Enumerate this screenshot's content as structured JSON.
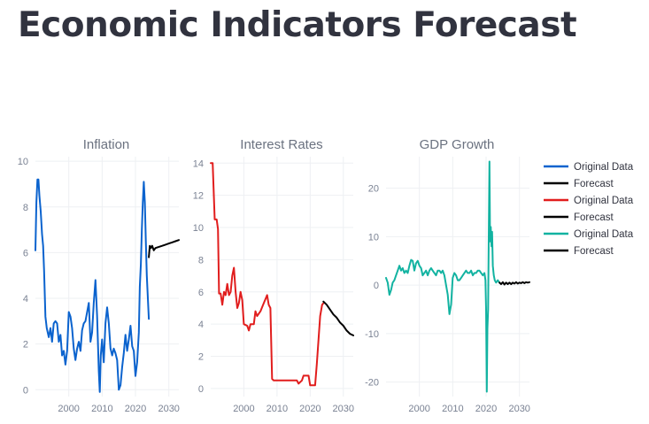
{
  "page": {
    "title": "Economic Indicators Forecast"
  },
  "colors": {
    "inflation": "#0b63ce",
    "interest": "#e11d1d",
    "gdp": "#12b3a1",
    "forecast": "#000000"
  },
  "chart_data": [
    {
      "type": "line",
      "title": "Inflation",
      "xlim": [
        1990,
        2033
      ],
      "ylim": [
        -0.3,
        10.2
      ],
      "xticks": [
        2000,
        2010,
        2020,
        2030
      ],
      "yticks": [
        0,
        2,
        4,
        6,
        8,
        10
      ],
      "series": [
        {
          "name": "Original Data",
          "color": "#0b63ce",
          "points": [
            [
              1990,
              6.1
            ],
            [
              1990.3,
              8.2
            ],
            [
              1990.6,
              9.2
            ],
            [
              1990.9,
              9.2
            ],
            [
              1991.2,
              8.5
            ],
            [
              1991.6,
              7.8
            ],
            [
              1992,
              6.8
            ],
            [
              1992.3,
              6.3
            ],
            [
              1992.6,
              5.2
            ],
            [
              1993,
              3.2
            ],
            [
              1993.4,
              2.7
            ],
            [
              1994,
              2.3
            ],
            [
              1994.5,
              2.7
            ],
            [
              1995,
              2.1
            ],
            [
              1995.5,
              2.9
            ],
            [
              1996,
              3.0
            ],
            [
              1996.5,
              2.9
            ],
            [
              1997,
              2.1
            ],
            [
              1997.5,
              2.4
            ],
            [
              1998,
              1.5
            ],
            [
              1998.5,
              1.7
            ],
            [
              1999,
              1.1
            ],
            [
              1999.5,
              1.7
            ],
            [
              2000,
              3.4
            ],
            [
              2000.5,
              3.2
            ],
            [
              2001,
              2.7
            ],
            [
              2001.5,
              1.8
            ],
            [
              2002,
              1.3
            ],
            [
              2002.5,
              1.8
            ],
            [
              2003,
              2.1
            ],
            [
              2003.5,
              1.7
            ],
            [
              2004,
              2.6
            ],
            [
              2004.5,
              2.9
            ],
            [
              2005,
              3.0
            ],
            [
              2005.5,
              3.4
            ],
            [
              2006,
              3.8
            ],
            [
              2006.5,
              2.1
            ],
            [
              2007,
              2.5
            ],
            [
              2007.5,
              3.8
            ],
            [
              2008,
              4.8
            ],
            [
              2008.5,
              3.2
            ],
            [
              2009,
              0.8
            ],
            [
              2009.3,
              -0.1
            ],
            [
              2009.6,
              1.5
            ],
            [
              2010,
              2.2
            ],
            [
              2010.5,
              1.2
            ],
            [
              2011,
              2.9
            ],
            [
              2011.5,
              3.6
            ],
            [
              2012,
              2.9
            ],
            [
              2012.5,
              1.8
            ],
            [
              2013,
              1.5
            ],
            [
              2013.5,
              1.8
            ],
            [
              2014,
              1.6
            ],
            [
              2014.5,
              1.3
            ],
            [
              2015,
              0.0
            ],
            [
              2015.5,
              0.2
            ],
            [
              2016,
              1.0
            ],
            [
              2016.5,
              1.6
            ],
            [
              2017,
              2.4
            ],
            [
              2017.5,
              1.7
            ],
            [
              2018,
              2.2
            ],
            [
              2018.5,
              2.8
            ],
            [
              2019,
              1.9
            ],
            [
              2019.5,
              1.7
            ],
            [
              2020,
              0.6
            ],
            [
              2020.5,
              1.2
            ],
            [
              2021,
              2.5
            ],
            [
              2021.3,
              4.5
            ],
            [
              2021.6,
              5.5
            ],
            [
              2021.9,
              7.0
            ],
            [
              2022.2,
              8.2
            ],
            [
              2022.5,
              9.1
            ],
            [
              2022.8,
              8.2
            ],
            [
              2023.1,
              6.5
            ],
            [
              2023.4,
              5.0
            ],
            [
              2023.7,
              4.0
            ],
            [
              2024,
              3.1
            ]
          ]
        },
        {
          "name": "Forecast",
          "color": "#000000",
          "points": [
            [
              2024,
              5.8
            ],
            [
              2024.3,
              6.3
            ],
            [
              2024.6,
              6.2
            ],
            [
              2025,
              6.3
            ],
            [
              2025.5,
              6.1
            ],
            [
              2026,
              6.2
            ],
            [
              2027,
              6.25
            ],
            [
              2028,
              6.3
            ],
            [
              2029,
              6.35
            ],
            [
              2030,
              6.4
            ],
            [
              2031,
              6.45
            ],
            [
              2032,
              6.5
            ],
            [
              2033,
              6.55
            ]
          ]
        }
      ]
    },
    {
      "type": "line",
      "title": "Interest Rates",
      "xlim": [
        1990,
        2033
      ],
      "ylim": [
        -0.5,
        14.4
      ],
      "xticks": [
        2000,
        2010,
        2020,
        2030
      ],
      "yticks": [
        0,
        2,
        4,
        6,
        8,
        10,
        12,
        14
      ],
      "series": [
        {
          "name": "Original Data",
          "color": "#e11d1d",
          "points": [
            [
              1990,
              14.0
            ],
            [
              1990.6,
              14.0
            ],
            [
              1991.2,
              10.5
            ],
            [
              1991.8,
              10.5
            ],
            [
              1992.2,
              9.9
            ],
            [
              1992.5,
              5.9
            ],
            [
              1993,
              5.9
            ],
            [
              1993.5,
              5.2
            ],
            [
              1994,
              6.0
            ],
            [
              1994.5,
              5.8
            ],
            [
              1995,
              6.5
            ],
            [
              1995.5,
              5.8
            ],
            [
              1996,
              6.0
            ],
            [
              1996.5,
              7.0
            ],
            [
              1997,
              7.5
            ],
            [
              1997.5,
              6.0
            ],
            [
              1998,
              5.0
            ],
            [
              1998.5,
              5.3
            ],
            [
              1999,
              6.0
            ],
            [
              1999.5,
              5.5
            ],
            [
              2000,
              4.0
            ],
            [
              2001,
              3.9
            ],
            [
              2001.5,
              3.6
            ],
            [
              2002,
              4.0
            ],
            [
              2003,
              4.0
            ],
            [
              2003.5,
              4.8
            ],
            [
              2004,
              4.5
            ],
            [
              2005,
              4.8
            ],
            [
              2006,
              5.3
            ],
            [
              2007,
              5.8
            ],
            [
              2007.5,
              5.2
            ],
            [
              2008,
              5.0
            ],
            [
              2008.5,
              0.6
            ],
            [
              2009,
              0.5
            ],
            [
              2016,
              0.5
            ],
            [
              2016.5,
              0.3
            ],
            [
              2017.5,
              0.5
            ],
            [
              2018,
              0.8
            ],
            [
              2019.5,
              0.8
            ],
            [
              2020,
              0.2
            ],
            [
              2021.5,
              0.2
            ],
            [
              2022,
              1.5
            ],
            [
              2022.5,
              3.0
            ],
            [
              2023,
              4.5
            ],
            [
              2023.6,
              5.2
            ],
            [
              2024,
              5.3
            ]
          ]
        },
        {
          "name": "Forecast",
          "color": "#000000",
          "points": [
            [
              2024,
              5.4
            ],
            [
              2025,
              5.2
            ],
            [
              2026,
              4.9
            ],
            [
              2027,
              4.6
            ],
            [
              2028,
              4.4
            ],
            [
              2029,
              4.1
            ],
            [
              2030,
              3.9
            ],
            [
              2031,
              3.6
            ],
            [
              2032,
              3.4
            ],
            [
              2033,
              3.3
            ]
          ]
        }
      ]
    },
    {
      "type": "line",
      "title": "GDP Growth",
      "xlim": [
        1990,
        2033
      ],
      "ylim": [
        -23,
        26.5
      ],
      "xticks": [
        2000,
        2010,
        2020,
        2030
      ],
      "yticks": [
        -20,
        -10,
        0,
        10,
        20
      ],
      "series": [
        {
          "name": "Original Data",
          "color": "#12b3a1",
          "points": [
            [
              1990,
              1.5
            ],
            [
              1990.5,
              0.5
            ],
            [
              1991,
              -2.0
            ],
            [
              1991.5,
              -1.0
            ],
            [
              1992,
              0.5
            ],
            [
              1992.5,
              1.0
            ],
            [
              1993,
              2.0
            ],
            [
              1993.5,
              3.0
            ],
            [
              1994,
              4.0
            ],
            [
              1994.5,
              3.0
            ],
            [
              1995,
              3.5
            ],
            [
              1995.5,
              2.5
            ],
            [
              1996,
              3.0
            ],
            [
              1996.5,
              2.5
            ],
            [
              1997,
              4.0
            ],
            [
              1997.5,
              5.2
            ],
            [
              1998,
              5.0
            ],
            [
              1998.5,
              3.0
            ],
            [
              1999,
              4.5
            ],
            [
              1999.5,
              5.0
            ],
            [
              2000,
              4.0
            ],
            [
              2000.5,
              3.5
            ],
            [
              2001,
              2.0
            ],
            [
              2001.5,
              2.5
            ],
            [
              2002,
              3.0
            ],
            [
              2002.5,
              2.0
            ],
            [
              2003,
              3.0
            ],
            [
              2003.5,
              3.5
            ],
            [
              2004,
              3.0
            ],
            [
              2004.5,
              2.5
            ],
            [
              2005,
              2.0
            ],
            [
              2005.5,
              3.0
            ],
            [
              2006,
              3.0
            ],
            [
              2006.5,
              2.5
            ],
            [
              2007,
              3.0
            ],
            [
              2007.5,
              2.0
            ],
            [
              2008,
              0.0
            ],
            [
              2008.5,
              -2.0
            ],
            [
              2009,
              -6.0
            ],
            [
              2009.5,
              -4.0
            ],
            [
              2010,
              1.5
            ],
            [
              2010.5,
              2.5
            ],
            [
              2011,
              2.0
            ],
            [
              2011.5,
              1.0
            ],
            [
              2012,
              1.0
            ],
            [
              2012.5,
              1.5
            ],
            [
              2013,
              2.0
            ],
            [
              2013.5,
              2.5
            ],
            [
              2014,
              3.0
            ],
            [
              2014.5,
              2.5
            ],
            [
              2015,
              2.5
            ],
            [
              2015.5,
              3.0
            ],
            [
              2016,
              2.0
            ],
            [
              2016.5,
              2.5
            ],
            [
              2017,
              2.5
            ],
            [
              2017.5,
              3.0
            ],
            [
              2018,
              3.0
            ],
            [
              2018.5,
              2.5
            ],
            [
              2019,
              2.0
            ],
            [
              2019.5,
              2.5
            ],
            [
              2019.8,
              1.0
            ],
            [
              2020,
              -5.0
            ],
            [
              2020.2,
              -22.0
            ],
            [
              2020.4,
              -9.0
            ],
            [
              2020.6,
              -5.0
            ],
            [
              2020.8,
              10.0
            ],
            [
              2021,
              25.5
            ],
            [
              2021.2,
              9.0
            ],
            [
              2021.4,
              12.0
            ],
            [
              2021.6,
              8.0
            ],
            [
              2021.8,
              11.0
            ],
            [
              2022,
              4.0
            ],
            [
              2022.3,
              2.0
            ],
            [
              2022.6,
              1.0
            ],
            [
              2023,
              0.5
            ],
            [
              2023.5,
              1.0
            ],
            [
              2024,
              0.5
            ]
          ]
        },
        {
          "name": "Forecast",
          "color": "#000000",
          "points": [
            [
              2024,
              0.5
            ],
            [
              2024.5,
              0.2
            ],
            [
              2025,
              0.6
            ],
            [
              2025.5,
              0.1
            ],
            [
              2026,
              0.5
            ],
            [
              2026.5,
              0.2
            ],
            [
              2027,
              0.5
            ],
            [
              2027.5,
              0.2
            ],
            [
              2028,
              0.5
            ],
            [
              2028.5,
              0.3
            ],
            [
              2029,
              0.6
            ],
            [
              2029.5,
              0.3
            ],
            [
              2030,
              0.5
            ],
            [
              2030.5,
              0.4
            ],
            [
              2031,
              0.6
            ],
            [
              2031.5,
              0.4
            ],
            [
              2032,
              0.6
            ],
            [
              2032.5,
              0.5
            ],
            [
              2033,
              0.6
            ]
          ]
        }
      ]
    }
  ],
  "legend": {
    "placement": "right",
    "entries": [
      {
        "label": "Original Data",
        "color": "#0b63ce"
      },
      {
        "label": "Forecast",
        "color": "#000000"
      },
      {
        "label": "Original Data",
        "color": "#e11d1d"
      },
      {
        "label": "Forecast",
        "color": "#000000"
      },
      {
        "label": "Original Data",
        "color": "#12b3a1"
      },
      {
        "label": "Forecast",
        "color": "#000000"
      }
    ]
  }
}
